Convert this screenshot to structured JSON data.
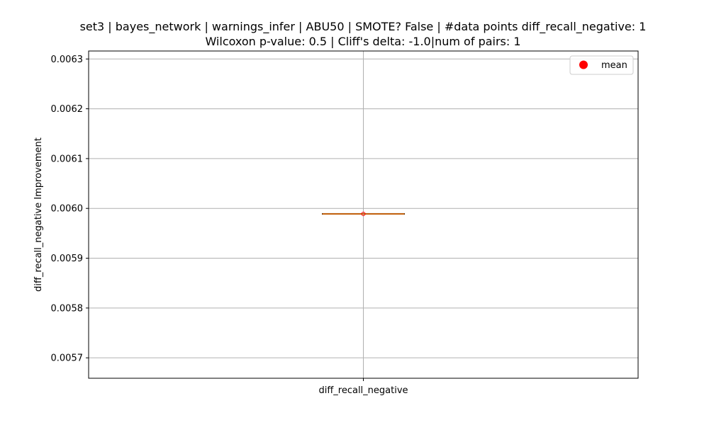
{
  "chart_data": {
    "type": "box",
    "title_line1": "set3 | bayes_network | warnings_infer | ABU50 | SMOTE? False | #data points diff_recall_negative: 1",
    "title_line2": "Wilcoxon p-value: 0.5 | Cliff's delta: -1.0|num of pairs: 1",
    "ylabel": "diff_recall_negative Improvement",
    "categories": [
      "diff_recall_negative"
    ],
    "ylim": [
      0.005659,
      0.006316
    ],
    "yticks": [
      0.0057,
      0.0058,
      0.0059,
      0.006,
      0.0061,
      0.0062,
      0.0063
    ],
    "ytick_labels": [
      "0.0057",
      "0.0058",
      "0.0059",
      "0.0060",
      "0.0061",
      "0.0062",
      "0.0063"
    ],
    "grid": true,
    "box": {
      "min": 0.005989,
      "q1": 0.005989,
      "median": 0.005989,
      "q3": 0.005989,
      "max": 0.005989,
      "mean": 0.005989
    },
    "legend": {
      "position": "top-right",
      "entries": [
        {
          "label": "mean",
          "color": "#ff0000",
          "marker": "circle"
        }
      ]
    },
    "colors": {
      "median": "#ff7f0e",
      "mean": "#ff0000",
      "grid": "#b0b0b0",
      "box": "#000000"
    }
  }
}
